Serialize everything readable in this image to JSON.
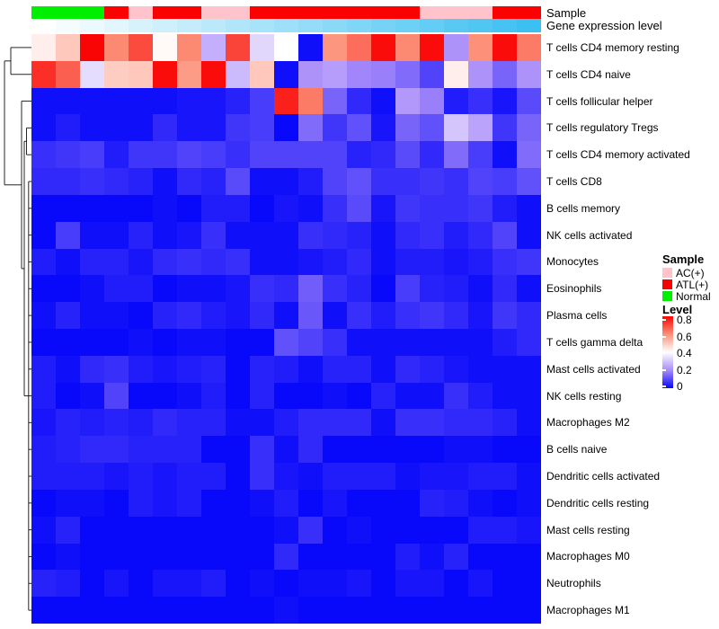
{
  "annotation_labels": {
    "sample": "Sample",
    "gene_expression": "Gene expression level"
  },
  "legend": {
    "sample_title": "Sample",
    "sample_items": [
      {
        "label": "AC(+)",
        "color": "#FFC3CC"
      },
      {
        "label": "ATL(+)",
        "color": "#FA0202"
      },
      {
        "label": "Normal",
        "color": "#00EE00"
      }
    ],
    "level_title": "Level",
    "level_ticks": [
      "0.8",
      "0.6",
      "0.4",
      "0.2",
      "0"
    ]
  },
  "chart_data": {
    "type": "heatmap",
    "rows": [
      "T cells CD4 memory resting",
      "T cells CD4 naive",
      "T cells follicular helper",
      "T cells regulatory  Tregs",
      "T cells CD4 memory activated",
      "T cells CD8",
      "B cells memory",
      "NK cells activated",
      "Monocytes",
      "Eosinophils",
      "Plasma cells",
      "T cells gamma delta",
      "Mast cells activated",
      "NK cells resting",
      "Macrophages M2",
      "B cells naive",
      "Dendritic cells activated",
      "Dendritic cells resting",
      "Mast cells resting",
      "Macrophages M0",
      "Neutrophils",
      "Macrophages M1"
    ],
    "n_columns": 21,
    "column_sample": [
      "Normal",
      "Normal",
      "Normal",
      "ATL(+)",
      "AC(+)",
      "ATL(+)",
      "ATL(+)",
      "AC(+)",
      "AC(+)",
      "ATL(+)",
      "ATL(+)",
      "ATL(+)",
      "ATL(+)",
      "ATL(+)",
      "ATL(+)",
      "ATL(+)",
      "AC(+)",
      "AC(+)",
      "AC(+)",
      "ATL(+)",
      "ATL(+)"
    ],
    "sample_colors": {
      "Normal": "#00EE00",
      "ATL(+)": "#FA0202",
      "AC(+)": "#FFC3CC"
    },
    "column_expression_level": [
      0,
      0.05,
      0.1,
      0.15,
      0.2,
      0.25,
      0.3,
      0.35,
      0.4,
      0.45,
      0.5,
      0.55,
      0.6,
      0.65,
      0.7,
      0.75,
      0.8,
      0.85,
      0.9,
      0.95,
      1
    ],
    "expression_ramp": [
      [
        "0",
        "#FFFFFF"
      ],
      [
        "1",
        "#3CC0F2"
      ]
    ],
    "level_colormap": [
      [
        "0",
        "#0808FA"
      ],
      [
        "0.2",
        "#A98CFA"
      ],
      [
        "0.4",
        "#FFFFFF"
      ],
      [
        "0.6",
        "#FC9078"
      ],
      [
        "0.8",
        "#FA0505"
      ]
    ],
    "value_min": 0,
    "value_max": 0.8,
    "values": [
      [
        0.43,
        0.5,
        0.8,
        0.61,
        0.7,
        0.41,
        0.61,
        0.26,
        0.71,
        0.33,
        0.4,
        0.01,
        0.59,
        0.65,
        0.79,
        0.61,
        0.79,
        0.21,
        0.6,
        0.79,
        0.63
      ],
      [
        0.74,
        0.67,
        0.34,
        0.49,
        0.5,
        0.79,
        0.58,
        0.79,
        0.28,
        0.5,
        0.01,
        0.21,
        0.23,
        0.19,
        0.18,
        0.15,
        0.09,
        0.43,
        0.21,
        0.14,
        0.21
      ],
      [
        0.01,
        0.01,
        0.01,
        0.01,
        0.01,
        0.01,
        0.02,
        0.02,
        0.04,
        0.08,
        0.76,
        0.63,
        0.14,
        0.05,
        0.01,
        0.22,
        0.18,
        0.03,
        0.06,
        0.02,
        0.1
      ],
      [
        0.01,
        0.03,
        0.01,
        0.01,
        0.01,
        0.05,
        0.02,
        0.02,
        0.07,
        0.08,
        0.0,
        0.15,
        0.07,
        0.11,
        0.02,
        0.14,
        0.11,
        0.3,
        0.24,
        0.07,
        0.14
      ],
      [
        0.06,
        0.07,
        0.08,
        0.03,
        0.07,
        0.07,
        0.09,
        0.08,
        0.06,
        0.09,
        0.09,
        0.09,
        0.09,
        0.04,
        0.05,
        0.1,
        0.05,
        0.15,
        0.08,
        0.01,
        0.15
      ],
      [
        0.05,
        0.05,
        0.06,
        0.05,
        0.04,
        0.01,
        0.05,
        0.04,
        0.1,
        0.01,
        0.01,
        0.03,
        0.09,
        0.11,
        0.06,
        0.06,
        0.07,
        0.06,
        0.09,
        0.08,
        0.11
      ],
      [
        0.0,
        0.0,
        0.0,
        0.0,
        0.0,
        0.01,
        0.0,
        0.03,
        0.03,
        0.0,
        0.02,
        0.01,
        0.06,
        0.1,
        0.02,
        0.07,
        0.06,
        0.06,
        0.07,
        0.03,
        0.01
      ],
      [
        0.0,
        0.08,
        0.01,
        0.01,
        0.04,
        0.01,
        0.02,
        0.06,
        0.01,
        0.01,
        0.01,
        0.06,
        0.05,
        0.04,
        0.01,
        0.05,
        0.06,
        0.03,
        0.05,
        0.09,
        0.01
      ],
      [
        0.03,
        0.01,
        0.04,
        0.04,
        0.02,
        0.05,
        0.06,
        0.05,
        0.06,
        0.01,
        0.01,
        0.02,
        0.03,
        0.05,
        0.01,
        0.03,
        0.03,
        0.02,
        0.03,
        0.06,
        0.07
      ],
      [
        0.0,
        0.0,
        0.01,
        0.03,
        0.03,
        0.0,
        0.01,
        0.01,
        0.02,
        0.06,
        0.05,
        0.13,
        0.06,
        0.04,
        0.0,
        0.08,
        0.04,
        0.03,
        0.01,
        0.05,
        0.01
      ],
      [
        0.01,
        0.04,
        0.01,
        0.01,
        0.0,
        0.04,
        0.05,
        0.03,
        0.02,
        0.05,
        0.01,
        0.12,
        0.01,
        0.06,
        0.03,
        0.06,
        0.07,
        0.05,
        0.02,
        0.07,
        0.05
      ],
      [
        0.0,
        0.0,
        0.0,
        0.0,
        0.01,
        0.0,
        0.01,
        0.01,
        0.0,
        0.0,
        0.11,
        0.09,
        0.06,
        0.01,
        0.01,
        0.01,
        0.01,
        0.01,
        0.01,
        0.03,
        0.05
      ],
      [
        0.03,
        0.01,
        0.05,
        0.06,
        0.03,
        0.02,
        0.03,
        0.04,
        0.0,
        0.04,
        0.03,
        0.01,
        0.04,
        0.04,
        0.01,
        0.05,
        0.04,
        0.02,
        0.01,
        0.01,
        0.01
      ],
      [
        0.03,
        0.0,
        0.01,
        0.09,
        0.0,
        0.0,
        0.01,
        0.03,
        0.0,
        0.04,
        0.0,
        0.0,
        0.01,
        0.0,
        0.04,
        0.01,
        0.01,
        0.06,
        0.03,
        0.01,
        0.01
      ],
      [
        0.02,
        0.04,
        0.03,
        0.04,
        0.03,
        0.05,
        0.04,
        0.04,
        0.01,
        0.01,
        0.03,
        0.05,
        0.05,
        0.05,
        0.01,
        0.06,
        0.06,
        0.05,
        0.05,
        0.04,
        0.01
      ],
      [
        0.03,
        0.04,
        0.05,
        0.05,
        0.04,
        0.04,
        0.04,
        0.0,
        0.0,
        0.06,
        0.01,
        0.05,
        0.0,
        0.0,
        0.0,
        0.0,
        0.0,
        0.01,
        0.01,
        0.0,
        0.0
      ],
      [
        0.03,
        0.03,
        0.03,
        0.02,
        0.03,
        0.02,
        0.03,
        0.03,
        0.0,
        0.06,
        0.02,
        0.01,
        0.03,
        0.03,
        0.03,
        0.01,
        0.02,
        0.02,
        0.03,
        0.03,
        0.01
      ],
      [
        0.0,
        0.01,
        0.01,
        0.0,
        0.03,
        0.02,
        0.03,
        0.0,
        0.0,
        0.01,
        0.03,
        0.0,
        0.02,
        0.0,
        0.0,
        0.0,
        0.04,
        0.03,
        0.01,
        0.0,
        0.01
      ],
      [
        0.01,
        0.04,
        0.0,
        0.0,
        0.0,
        0.0,
        0.0,
        0.0,
        0.0,
        0.0,
        0.01,
        0.06,
        0.0,
        0.01,
        0.0,
        0.0,
        0.0,
        0.0,
        0.03,
        0.03,
        0.02
      ],
      [
        0.0,
        0.01,
        0.0,
        0.0,
        0.0,
        0.0,
        0.0,
        0.0,
        0.0,
        0.0,
        0.05,
        0.0,
        0.0,
        0.0,
        0.0,
        0.03,
        0.01,
        0.04,
        0.0,
        0.0,
        0.0
      ],
      [
        0.04,
        0.03,
        0.0,
        0.02,
        0.0,
        0.02,
        0.02,
        0.03,
        0.0,
        0.01,
        0.0,
        0.01,
        0.01,
        0.02,
        0.0,
        0.02,
        0.02,
        0.0,
        0.02,
        0.0,
        0.0
      ],
      [
        0.0,
        0.0,
        0.0,
        0.0,
        0.0,
        0.0,
        0.0,
        0.0,
        0.0,
        0.0,
        0.01,
        0.0,
        0.0,
        0.0,
        0.0,
        0.0,
        0.0,
        0.0,
        0.0,
        0.0,
        0.0
      ]
    ]
  }
}
